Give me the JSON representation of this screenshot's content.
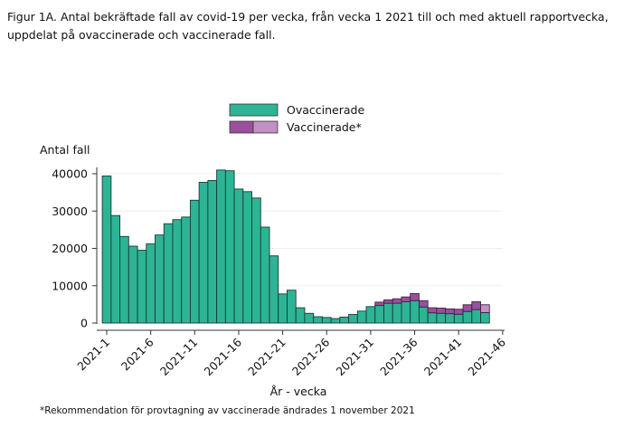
{
  "title": "Figur 1A. Antal bekräftade fall av covid-19 per vecka, från vecka 1 2021 till och med aktuell rapportvecka, uppdelat på ovaccinerade och vaccinerade fall.",
  "footnote": "*Rekommendation för provtagning av vaccinerade ändrades 1 november 2021",
  "chart_data": {
    "type": "bar",
    "stacked": true,
    "xlabel": "År - vecka",
    "ylabel": "Antal fall",
    "ylim": [
      0,
      42000
    ],
    "yticks": [
      0,
      10000,
      20000,
      30000,
      40000
    ],
    "xticks": [
      "2021-1",
      "2021-6",
      "2021-11",
      "2021-16",
      "2021-21",
      "2021-26",
      "2021-31",
      "2021-36",
      "2021-41",
      "2021-46"
    ],
    "xtick_weeks": [
      1,
      6,
      11,
      16,
      21,
      26,
      31,
      36,
      41,
      46
    ],
    "grid": true,
    "legend_placement": "top",
    "weeks": [
      1,
      2,
      3,
      4,
      5,
      6,
      7,
      8,
      9,
      10,
      11,
      12,
      13,
      14,
      15,
      16,
      17,
      18,
      19,
      20,
      21,
      22,
      23,
      24,
      25,
      26,
      27,
      28,
      29,
      30,
      31,
      32,
      33,
      34,
      35,
      36,
      37,
      38,
      39,
      40,
      41,
      42,
      43,
      44
    ],
    "series": [
      {
        "name": "Ovaccinerade",
        "color": "#2db495",
        "values": [
          39400,
          28800,
          23200,
          20600,
          19500,
          21200,
          23600,
          26600,
          27700,
          28400,
          32900,
          37700,
          38200,
          41000,
          40800,
          35900,
          35200,
          33500,
          25700,
          18000,
          7800,
          8800,
          4100,
          2600,
          1700,
          1500,
          1200,
          1600,
          2300,
          3200,
          4400,
          4700,
          5300,
          5300,
          5700,
          6000,
          4300,
          2750,
          2600,
          2500,
          2350,
          3100,
          3600,
          2800
        ]
      },
      {
        "name": "Vaccinerade*",
        "color": "#9b4f9e",
        "preliminary_color": "#c48fc4",
        "values": [
          0,
          0,
          0,
          0,
          0,
          0,
          0,
          0,
          0,
          0,
          0,
          0,
          0,
          0,
          0,
          0,
          0,
          0,
          0,
          0,
          0,
          0,
          0,
          0,
          0,
          0,
          0,
          0,
          0,
          0,
          0,
          900,
          900,
          1200,
          1300,
          1900,
          1700,
          1350,
          1400,
          1300,
          1350,
          1800,
          2100,
          2100
        ]
      }
    ]
  }
}
